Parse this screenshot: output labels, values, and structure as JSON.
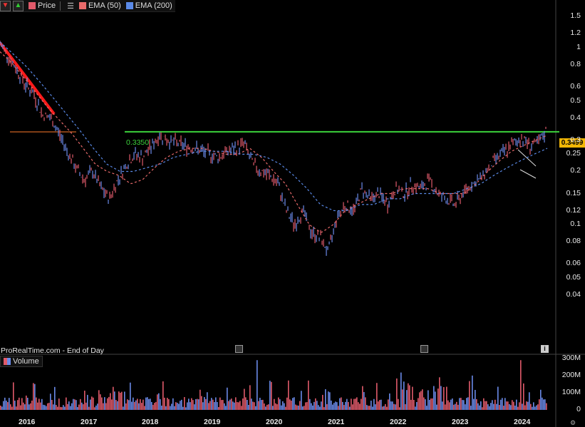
{
  "legend": {
    "price_label": "Price",
    "ema50_label": "EMA (50)",
    "ema200_label": "EMA (200)",
    "down_icon": "arrow-down-icon",
    "up_icon": "arrow-up-icon",
    "menu_icon": "list-menu-icon"
  },
  "colors": {
    "price_swatch": "#e05a6a",
    "ema50": "#e86a6a",
    "ema200": "#5a8ae8",
    "level": "#3cd23c",
    "trend": "#ff1a1a",
    "last_price_bg": "#f2b705"
  },
  "chart_header": {
    "source": "ProRealTime.com - End of Day"
  },
  "level_line": {
    "label": "0.3350",
    "value": 0.335
  },
  "last_price": "0.3499",
  "volume_panel": {
    "title": "Volume"
  },
  "chart_data": [
    {
      "type": "line",
      "scale": "log",
      "y_ticks": [
        "1.5",
        "1.2",
        "1",
        "0.8",
        "0.6",
        "0.5",
        "0.4",
        "0.3",
        "0.25",
        "0.2",
        "0.15",
        "0.12",
        "0.1",
        "0.08",
        "0.06",
        "0.05",
        "0.04"
      ],
      "x_ticks": [
        "2016",
        "2017",
        "2018",
        "2019",
        "2020",
        "2021",
        "2022",
        "2023",
        "2024"
      ],
      "series": [
        {
          "values": [
            1.05,
            0.9,
            0.75,
            0.62,
            0.55,
            0.42,
            0.4,
            0.33,
            0.26,
            0.21,
            0.18,
            0.2,
            0.16,
            0.14,
            0.18,
            0.22,
            0.25,
            0.24,
            0.28,
            0.32,
            0.3,
            0.29,
            0.28,
            0.27,
            0.26,
            0.25,
            0.24,
            0.26,
            0.27,
            0.29,
            0.22,
            0.2,
            0.19,
            0.17,
            0.12,
            0.1,
            0.12,
            0.09,
            0.085,
            0.07,
            0.11,
            0.13,
            0.12,
            0.16,
            0.14,
            0.15,
            0.13,
            0.16,
            0.15,
            0.17,
            0.16,
            0.18,
            0.15,
            0.14,
            0.13,
            0.15,
            0.17,
            0.18,
            0.21,
            0.24,
            0.26,
            0.29,
            0.31,
            0.28,
            0.29,
            0.35
          ]
        },
        {
          "name": "EMA (50)",
          "values": [
            0.95,
            0.82,
            0.68,
            0.56,
            0.46,
            0.39,
            0.33,
            0.27,
            0.22,
            0.2,
            0.19,
            0.17,
            0.18,
            0.21,
            0.24,
            0.26,
            0.27,
            0.27,
            0.26,
            0.25,
            0.25,
            0.27,
            0.24,
            0.2,
            0.17,
            0.13,
            0.1,
            0.09,
            0.1,
            0.12,
            0.13,
            0.14,
            0.15,
            0.15,
            0.16,
            0.16,
            0.16,
            0.15,
            0.15,
            0.15,
            0.17,
            0.2,
            0.23,
            0.26,
            0.28,
            0.3,
            0.32
          ]
        },
        {
          "name": "EMA (200)",
          "values": [
            1.08,
            0.92,
            0.78,
            0.64,
            0.52,
            0.42,
            0.34,
            0.27,
            0.22,
            0.2,
            0.2,
            0.21,
            0.22,
            0.24,
            0.25,
            0.26,
            0.26,
            0.26,
            0.25,
            0.25,
            0.24,
            0.22,
            0.19,
            0.16,
            0.13,
            0.12,
            0.12,
            0.13,
            0.13,
            0.14,
            0.14,
            0.15,
            0.15,
            0.15,
            0.15,
            0.16,
            0.17,
            0.19,
            0.21,
            0.23,
            0.25,
            0.27
          ]
        }
      ]
    },
    {
      "type": "bar",
      "y_ticks": [
        "300M",
        "200M",
        "100M",
        "0"
      ],
      "ylim": [
        0,
        320
      ]
    }
  ]
}
